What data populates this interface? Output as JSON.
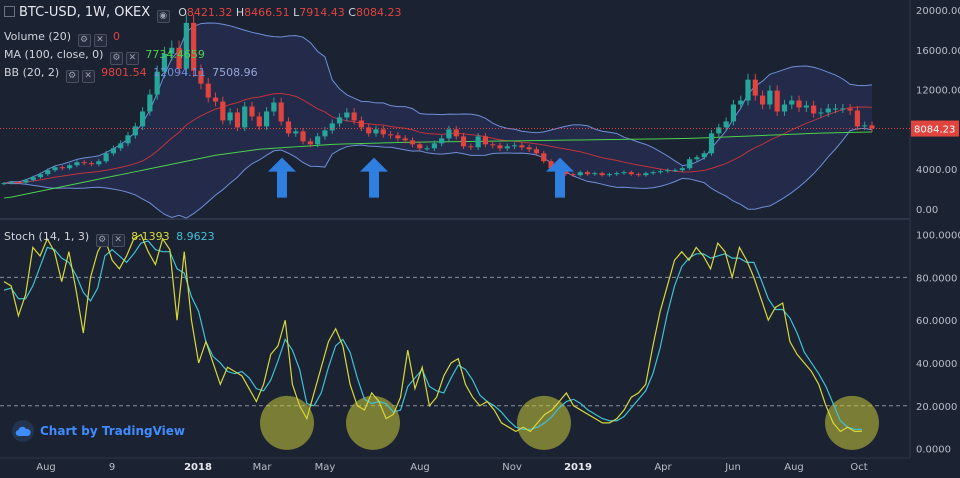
{
  "header": {
    "symbol_title": "BTC-USD, 1W, OKEX",
    "ohlc": [
      {
        "k": "O",
        "v": "8421.32"
      },
      {
        "k": "H",
        "v": "8466.51"
      },
      {
        "k": "L",
        "v": "7914.43"
      },
      {
        "k": "C",
        "v": "8084.23"
      }
    ]
  },
  "legends": {
    "volume": {
      "label": "Volume (20)",
      "value": "0",
      "color": "#e0443f"
    },
    "ma": {
      "label": "MA (100, close, 0)",
      "value": "7734.4659",
      "color": "#4cd14c"
    },
    "bb": {
      "label": "BB (20, 2)",
      "values": [
        "9801.54",
        "12094.11",
        "7508.96"
      ],
      "colors": [
        "#e0443f",
        "#6f8fd8",
        "#9aa6d8"
      ]
    },
    "stoch": {
      "label": "Stoch (14, 1, 3)",
      "values": [
        "8.1393",
        "8.9623"
      ],
      "colors": [
        "#d8d83a",
        "#3fc1d6"
      ]
    }
  },
  "price_axis": {
    "ticks": [
      "20000.00",
      "16000.00",
      "12000.00",
      "8000.00",
      "4000.00",
      "0.00"
    ],
    "tick_values": [
      20000,
      16000,
      12000,
      8000,
      4000,
      0
    ],
    "current_label": "8084.23",
    "current_value": 8084.23
  },
  "stoch_axis": {
    "ticks": [
      "100.0000",
      "80.0000",
      "60.0000",
      "40.0000",
      "20.0000",
      "0.0000"
    ],
    "tick_values": [
      100,
      80,
      60,
      40,
      20,
      0
    ]
  },
  "time_axis": [
    "Aug",
    "9",
    "2018",
    "Mar",
    "May",
    "Aug",
    "Nov",
    "2019",
    "Apr",
    "Jun",
    "Aug",
    "Oct"
  ],
  "branding": {
    "text": "Chart by TradingView"
  },
  "colors": {
    "up": "#26a69a",
    "down": "#e0443f",
    "ma": "#4cd14c",
    "bb_mid": "#c0343a",
    "bb_band": "#6f8fd8",
    "stoch_k": "#d8d83a",
    "stoch_d": "#3fc1d6",
    "arrow": "#2f7fe0",
    "circle": "#c8c83a",
    "bg": "#1b2232"
  },
  "chart_data": [
    {
      "type": "candlestick",
      "title": "BTC-USD, 1W, OKEX",
      "ylim": [
        -300,
        20600
      ],
      "grid": false,
      "ohlc_last": {
        "open": 8421.32,
        "high": 8466.51,
        "low": 7914.43,
        "close": 8084.23
      },
      "close": [
        2600,
        2700,
        2650,
        2900,
        3200,
        3500,
        3900,
        4200,
        4100,
        4400,
        4700,
        4600,
        4500,
        4800,
        5600,
        6100,
        6600,
        7400,
        8300,
        9800,
        11500,
        13800,
        15600,
        16200,
        14100,
        18700,
        13900,
        12600,
        11200,
        10800,
        8900,
        9700,
        8200,
        10300,
        9300,
        8300,
        9800,
        10700,
        8800,
        7600,
        7800,
        6800,
        6500,
        7300,
        7900,
        8600,
        9200,
        9700,
        8900,
        8200,
        7600,
        8000,
        7500,
        7400,
        7100,
        6900,
        6500,
        6100,
        6100,
        6600,
        7100,
        8000,
        7300,
        6300,
        6200,
        7300,
        6500,
        6400,
        6100,
        6300,
        6400,
        6200,
        6000,
        5600,
        4800,
        4100,
        3800,
        3500,
        3400,
        3700,
        3500,
        3600,
        3400,
        3500,
        3600,
        3700,
        3500,
        3400,
        3600,
        3700,
        3800,
        3900,
        3900,
        4100,
        5000,
        5200,
        5600,
        7600,
        8200,
        8800,
        10500,
        10900,
        13000,
        11400,
        10500,
        11900,
        9800,
        10500,
        10900,
        10200,
        10400,
        9600,
        9700,
        10100,
        10100,
        10100,
        9900,
        8300,
        8400,
        8100
      ],
      "ma100_close": [
        1100,
        1200,
        1350,
        1500,
        1650,
        1800,
        1950,
        2100,
        2250,
        2400,
        2550,
        2700,
        2850,
        3000,
        3150,
        3300,
        3450,
        3600,
        3750,
        3900,
        4050,
        4200,
        4350,
        4500,
        4650,
        4800,
        4950,
        5100,
        5250,
        5400,
        5500,
        5600,
        5700,
        5800,
        5900,
        6000,
        6050,
        6100,
        6150,
        6200,
        6250,
        6300,
        6350,
        6400,
        6450,
        6500,
        6520,
        6540,
        6560,
        6580,
        6600,
        6620,
        6640,
        6660,
        6680,
        6700,
        6710,
        6720,
        6730,
        6740,
        6750,
        6760,
        6770,
        6780,
        6790,
        6800,
        6810,
        6820,
        6830,
        6840,
        6850,
        6860,
        6870,
        6880,
        6890,
        6900,
        6910,
        6920,
        6930,
        6940,
        6950,
        6960,
        6970,
        6980,
        6990,
        7000,
        7010,
        7020,
        7030,
        7040,
        7050,
        7060,
        7070,
        7080,
        7100,
        7120,
        7150,
        7180,
        7210,
        7240,
        7270,
        7300,
        7330,
        7360,
        7390,
        7420,
        7450,
        7480,
        7510,
        7540,
        7570,
        7600,
        7620,
        7640,
        7660,
        7680,
        7700,
        7715,
        7725,
        7734.47
      ],
      "bb_upper_last": 12094.11,
      "bb_basis_last": 9801.54,
      "bb_lower_last": 7508.96,
      "annotations": [
        {
          "kind": "up-arrow",
          "near_time": "Mar"
        },
        {
          "kind": "up-arrow",
          "near_time": "May"
        },
        {
          "kind": "up-arrow",
          "near_time": "Nov"
        }
      ]
    },
    {
      "type": "line",
      "title": "Stoch (14, 1, 3)",
      "ylim": [
        -3,
        104
      ],
      "reference_lines": [
        80,
        20
      ],
      "series": [
        {
          "name": "%K",
          "values": [
            78,
            76,
            62,
            72,
            94,
            90,
            98,
            92,
            78,
            92,
            74,
            54,
            80,
            92,
            98,
            88,
            84,
            90,
            98,
            100,
            92,
            86,
            98,
            93,
            60,
            92,
            60,
            40,
            50,
            40,
            30,
            38,
            36,
            34,
            28,
            22,
            30,
            44,
            48,
            60,
            30,
            20,
            14,
            26,
            38,
            50,
            56,
            48,
            30,
            20,
            18,
            26,
            22,
            14,
            16,
            24,
            46,
            28,
            38,
            20,
            24,
            34,
            40,
            42,
            30,
            24,
            20,
            22,
            18,
            12,
            10,
            8,
            10,
            8,
            12,
            16,
            18,
            22,
            26,
            20,
            18,
            16,
            14,
            12,
            12,
            14,
            18,
            24,
            26,
            30,
            48,
            64,
            76,
            88,
            92,
            88,
            94,
            90,
            84,
            96,
            92,
            80,
            94,
            88,
            80,
            70,
            60,
            66,
            68,
            50,
            44,
            40,
            36,
            30,
            20,
            12,
            8,
            10,
            8,
            8.14
          ]
        },
        {
          "name": "%D",
          "values": [
            74,
            75,
            70,
            70,
            76,
            85,
            94,
            93,
            89,
            87,
            81,
            73,
            69,
            75,
            90,
            93,
            90,
            87,
            91,
            96,
            97,
            93,
            92,
            92,
            84,
            82,
            71,
            64,
            50,
            43,
            40,
            36,
            35,
            36,
            33,
            28,
            27,
            32,
            41,
            51,
            46,
            37,
            21,
            20,
            26,
            38,
            48,
            51,
            45,
            33,
            23,
            21,
            22,
            21,
            17,
            18,
            29,
            33,
            37,
            29,
            27,
            26,
            33,
            39,
            37,
            32,
            25,
            22,
            20,
            17,
            13,
            10,
            9,
            9,
            10,
            12,
            15,
            19,
            22,
            23,
            21,
            18,
            16,
            14,
            13,
            13,
            15,
            19,
            23,
            27,
            35,
            47,
            63,
            76,
            85,
            89,
            91,
            91,
            89,
            90,
            91,
            89,
            89,
            87,
            87,
            79,
            70,
            65,
            65,
            61,
            54,
            45,
            40,
            35,
            29,
            21,
            13,
            10,
            9,
            8.96
          ]
        }
      ],
      "annotations": [
        {
          "kind": "highlight-circle",
          "near_time": "Mar"
        },
        {
          "kind": "highlight-circle",
          "near_time": "May"
        },
        {
          "kind": "highlight-circle",
          "near_time": "Nov"
        },
        {
          "kind": "highlight-circle",
          "near_time": "Oct"
        }
      ]
    }
  ]
}
